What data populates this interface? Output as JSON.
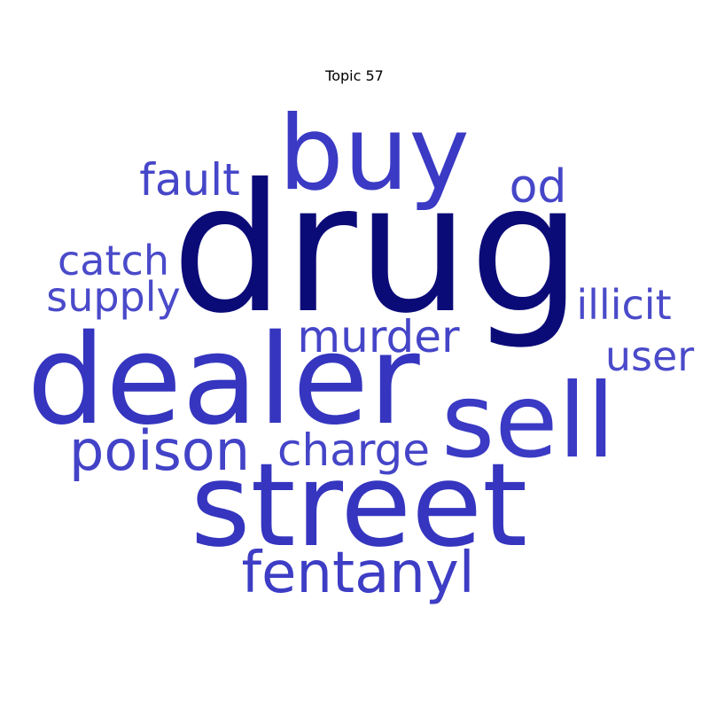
{
  "chart_data": {
    "type": "wordcloud",
    "title": "Topic 57",
    "words": [
      {
        "text": "drug",
        "weight": 1.0,
        "color": "#0b0b78"
      },
      {
        "text": "dealer",
        "weight": 0.82,
        "color": "#3535bf"
      },
      {
        "text": "street",
        "weight": 0.78,
        "color": "#3535bf"
      },
      {
        "text": "buy",
        "weight": 0.66,
        "color": "#3a3ac4"
      },
      {
        "text": "sell",
        "weight": 0.66,
        "color": "#3a3ac4"
      },
      {
        "text": "fentanyl",
        "weight": 0.42,
        "color": "#3d3dc5"
      },
      {
        "text": "poison",
        "weight": 0.4,
        "color": "#4343c8"
      },
      {
        "text": "charge",
        "weight": 0.33,
        "color": "#4545c8"
      },
      {
        "text": "murder",
        "weight": 0.33,
        "color": "#4545c8"
      },
      {
        "text": "fault",
        "weight": 0.33,
        "color": "#4646c9"
      },
      {
        "text": "od",
        "weight": 0.33,
        "color": "#4646c9"
      },
      {
        "text": "catch",
        "weight": 0.3,
        "color": "#4a4aca"
      },
      {
        "text": "supply",
        "weight": 0.3,
        "color": "#4a4aca"
      },
      {
        "text": "illicit",
        "weight": 0.3,
        "color": "#4a4aca"
      },
      {
        "text": "user",
        "weight": 0.3,
        "color": "#4a4aca"
      }
    ]
  }
}
